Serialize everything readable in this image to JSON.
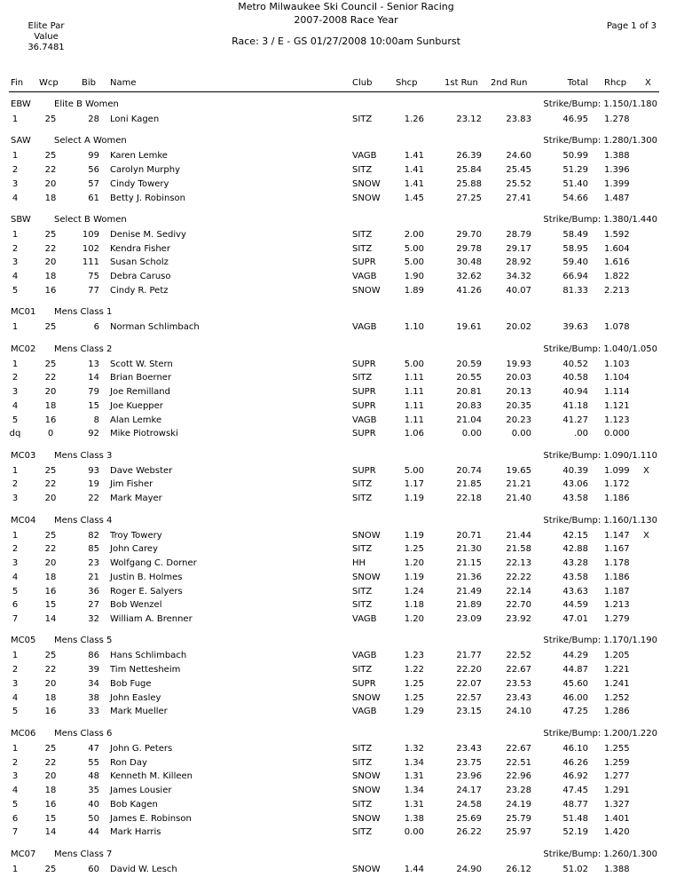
{
  "header": {
    "title_line1": "Metro Milwaukee Ski Council - Senior Racing",
    "title_line2": "2007-2008 Race Year",
    "race": "Race: 3 / E - GS 01/27/2008 10:00am Sunburst",
    "elite_par_label1": "Elite Par",
    "elite_par_label2": "Value",
    "elite_par_value": "36.7481",
    "page": "Page 1 of 3"
  },
  "columns": {
    "fin": "Fin",
    "wcp": "Wcp",
    "bib": "Bib",
    "name": "Name",
    "club": "Club",
    "shcp": "Shcp",
    "run1": "1st Run",
    "run2": "2nd Run",
    "total": "Total",
    "rhcp": "Rhcp",
    "x": "X"
  },
  "groups": [
    {
      "code": "EBW",
      "name": "Elite B Women",
      "strike_bump": "Strike/Bump: 1.150/1.180",
      "rows": [
        [
          "1",
          "25",
          "28",
          "Loni Kagen",
          "SITZ",
          "1.26",
          "23.12",
          "23.83",
          "46.95",
          "1.278",
          ""
        ]
      ]
    },
    {
      "code": "SAW",
      "name": "Select A Women",
      "strike_bump": "Strike/Bump: 1.280/1.300",
      "rows": [
        [
          "1",
          "25",
          "99",
          "Karen Lemke",
          "VAGB",
          "1.41",
          "26.39",
          "24.60",
          "50.99",
          "1.388",
          ""
        ],
        [
          "2",
          "22",
          "56",
          "Carolyn Murphy",
          "SITZ",
          "1.41",
          "25.84",
          "25.45",
          "51.29",
          "1.396",
          ""
        ],
        [
          "3",
          "20",
          "57",
          "Cindy Towery",
          "SNOW",
          "1.41",
          "25.88",
          "25.52",
          "51.40",
          "1.399",
          ""
        ],
        [
          "4",
          "18",
          "61",
          "Betty J. Robinson",
          "SNOW",
          "1.45",
          "27.25",
          "27.41",
          "54.66",
          "1.487",
          ""
        ]
      ]
    },
    {
      "code": "SBW",
      "name": "Select B Women",
      "strike_bump": "Strike/Bump: 1.380/1.440",
      "rows": [
        [
          "1",
          "25",
          "109",
          "Denise M. Sedivy",
          "SITZ",
          "2.00",
          "29.70",
          "28.79",
          "58.49",
          "1.592",
          ""
        ],
        [
          "2",
          "22",
          "102",
          "Kendra Fisher",
          "SITZ",
          "5.00",
          "29.78",
          "29.17",
          "58.95",
          "1.604",
          ""
        ],
        [
          "3",
          "20",
          "111",
          "Susan Scholz",
          "SUPR",
          "5.00",
          "30.48",
          "28.92",
          "59.40",
          "1.616",
          ""
        ],
        [
          "4",
          "18",
          "75",
          "Debra Caruso",
          "VAGB",
          "1.90",
          "32.62",
          "34.32",
          "66.94",
          "1.822",
          ""
        ],
        [
          "5",
          "16",
          "77",
          "Cindy R. Petz",
          "SNOW",
          "1.89",
          "41.26",
          "40.07",
          "81.33",
          "2.213",
          ""
        ]
      ]
    },
    {
      "code": "MC01",
      "name": "Mens Class 1",
      "strike_bump": "",
      "rows": [
        [
          "1",
          "25",
          "6",
          "Norman Schlimbach",
          "VAGB",
          "1.10",
          "19.61",
          "20.02",
          "39.63",
          "1.078",
          ""
        ]
      ]
    },
    {
      "code": "MC02",
      "name": "Mens Class 2",
      "strike_bump": "Strike/Bump: 1.040/1.050",
      "rows": [
        [
          "1",
          "25",
          "13",
          "Scott W. Stern",
          "SUPR",
          "5.00",
          "20.59",
          "19.93",
          "40.52",
          "1.103",
          ""
        ],
        [
          "2",
          "22",
          "14",
          "Brian Boerner",
          "SITZ",
          "1.11",
          "20.55",
          "20.03",
          "40.58",
          "1.104",
          ""
        ],
        [
          "3",
          "20",
          "79",
          "Joe Remilland",
          "SUPR",
          "1.11",
          "20.81",
          "20.13",
          "40.94",
          "1.114",
          ""
        ],
        [
          "4",
          "18",
          "15",
          "Joe Kuepper",
          "SUPR",
          "1.11",
          "20.83",
          "20.35",
          "41.18",
          "1.121",
          ""
        ],
        [
          "5",
          "16",
          "8",
          "Alan Lemke",
          "VAGB",
          "1.11",
          "21.04",
          "20.23",
          "41.27",
          "1.123",
          ""
        ],
        [
          "dq",
          "0",
          "92",
          "Mike Piotrowski",
          "SUPR",
          "1.06",
          "0.00",
          "0.00",
          ".00",
          "0.000",
          ""
        ]
      ]
    },
    {
      "code": "MC03",
      "name": "Mens Class 3",
      "strike_bump": "Strike/Bump: 1.090/1.110",
      "rows": [
        [
          "1",
          "25",
          "93",
          "Dave Webster",
          "SUPR",
          "5.00",
          "20.74",
          "19.65",
          "40.39",
          "1.099",
          "X"
        ],
        [
          "2",
          "22",
          "19",
          "Jim Fisher",
          "SITZ",
          "1.17",
          "21.85",
          "21.21",
          "43.06",
          "1.172",
          ""
        ],
        [
          "3",
          "20",
          "22",
          "Mark Mayer",
          "SITZ",
          "1.19",
          "22.18",
          "21.40",
          "43.58",
          "1.186",
          ""
        ]
      ]
    },
    {
      "code": "MC04",
      "name": "Mens Class 4",
      "strike_bump": "Strike/Bump: 1.160/1.130",
      "rows": [
        [
          "1",
          "25",
          "82",
          "Troy Towery",
          "SNOW",
          "1.19",
          "20.71",
          "21.44",
          "42.15",
          "1.147",
          "X"
        ],
        [
          "2",
          "22",
          "85",
          "John Carey",
          "SITZ",
          "1.25",
          "21.30",
          "21.58",
          "42.88",
          "1.167",
          ""
        ],
        [
          "3",
          "20",
          "23",
          "Wolfgang C. Dorner",
          "HH",
          "1.20",
          "21.15",
          "22.13",
          "43.28",
          "1.178",
          ""
        ],
        [
          "4",
          "18",
          "21",
          "Justin B. Holmes",
          "SNOW",
          "1.19",
          "21.36",
          "22.22",
          "43.58",
          "1.186",
          ""
        ],
        [
          "5",
          "16",
          "36",
          "Roger E. Salyers",
          "SITZ",
          "1.24",
          "21.49",
          "22.14",
          "43.63",
          "1.187",
          ""
        ],
        [
          "6",
          "15",
          "27",
          "Bob Wenzel",
          "SITZ",
          "1.18",
          "21.89",
          "22.70",
          "44.59",
          "1.213",
          ""
        ],
        [
          "7",
          "14",
          "32",
          "William A. Brenner",
          "VAGB",
          "1.20",
          "23.09",
          "23.92",
          "47.01",
          "1.279",
          ""
        ]
      ]
    },
    {
      "code": "MC05",
      "name": "Mens Class 5",
      "strike_bump": "Strike/Bump: 1.170/1.190",
      "rows": [
        [
          "1",
          "25",
          "86",
          "Hans Schlimbach",
          "VAGB",
          "1.23",
          "21.77",
          "22.52",
          "44.29",
          "1.205",
          ""
        ],
        [
          "2",
          "22",
          "39",
          "Tim Nettesheim",
          "SITZ",
          "1.22",
          "22.20",
          "22.67",
          "44.87",
          "1.221",
          ""
        ],
        [
          "3",
          "20",
          "34",
          "Bob Fuge",
          "SUPR",
          "1.25",
          "22.07",
          "23.53",
          "45.60",
          "1.241",
          ""
        ],
        [
          "4",
          "18",
          "38",
          "John Easley",
          "SNOW",
          "1.25",
          "22.57",
          "23.43",
          "46.00",
          "1.252",
          ""
        ],
        [
          "5",
          "16",
          "33",
          "Mark Mueller",
          "VAGB",
          "1.29",
          "23.15",
          "24.10",
          "47.25",
          "1.286",
          ""
        ]
      ]
    },
    {
      "code": "MC06",
      "name": "Mens Class 6",
      "strike_bump": "Strike/Bump: 1.200/1.220",
      "rows": [
        [
          "1",
          "25",
          "47",
          "John G. Peters",
          "SITZ",
          "1.32",
          "23.43",
          "22.67",
          "46.10",
          "1.255",
          ""
        ],
        [
          "2",
          "22",
          "55",
          "Ron Day",
          "SITZ",
          "1.34",
          "23.75",
          "22.51",
          "46.26",
          "1.259",
          ""
        ],
        [
          "3",
          "20",
          "48",
          "Kenneth M. Killeen",
          "SNOW",
          "1.31",
          "23.96",
          "22.96",
          "46.92",
          "1.277",
          ""
        ],
        [
          "4",
          "18",
          "35",
          "James Lousier",
          "SNOW",
          "1.34",
          "24.17",
          "23.28",
          "47.45",
          "1.291",
          ""
        ],
        [
          "5",
          "16",
          "40",
          "Bob Kagen",
          "SITZ",
          "1.31",
          "24.58",
          "24.19",
          "48.77",
          "1.327",
          ""
        ],
        [
          "6",
          "15",
          "50",
          "James E. Robinson",
          "SNOW",
          "1.38",
          "25.69",
          "25.79",
          "51.48",
          "1.401",
          ""
        ],
        [
          "7",
          "14",
          "44",
          "Mark Harris",
          "SITZ",
          "0.00",
          "26.22",
          "25.97",
          "52.19",
          "1.420",
          ""
        ]
      ]
    },
    {
      "code": "MC07",
      "name": "Mens Class 7",
      "strike_bump": "Strike/Bump: 1.260/1.300",
      "rows": [
        [
          "1",
          "25",
          "60",
          "David W. Lesch",
          "SNOW",
          "1.44",
          "24.90",
          "26.12",
          "51.02",
          "1.388",
          ""
        ]
      ]
    }
  ]
}
